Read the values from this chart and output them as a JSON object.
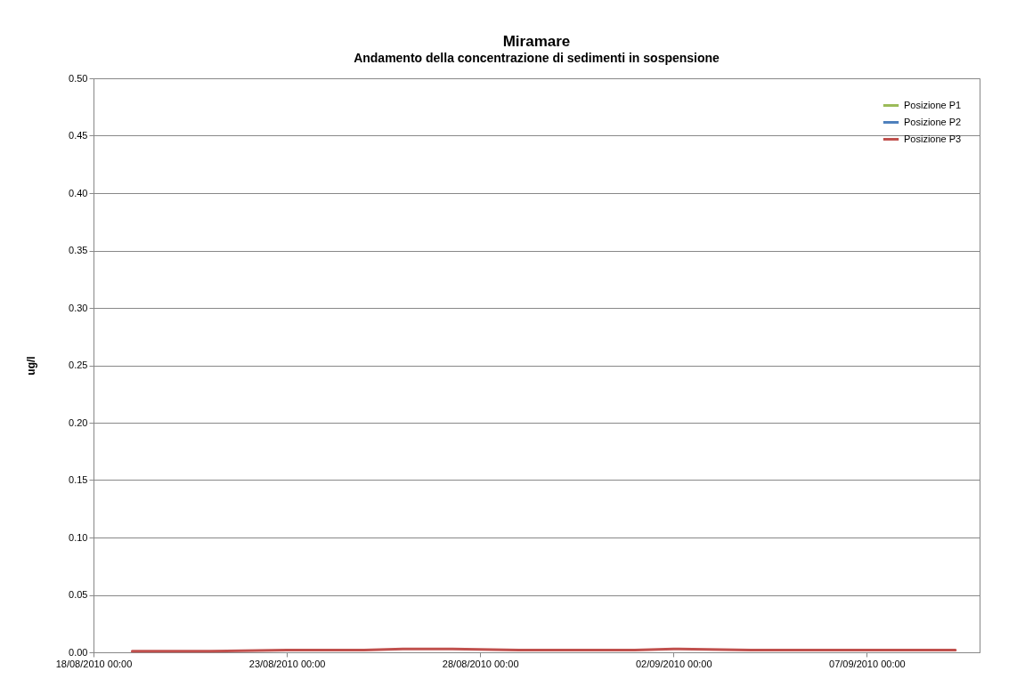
{
  "chart_data": {
    "type": "line",
    "title": "Miramare",
    "subtitle": "Andamento della concentrazione di sedimenti in sospensione",
    "ylabel": "ug/l",
    "x": [
      "2010-08-19",
      "2010-08-21",
      "2010-08-23",
      "2010-08-25",
      "2010-08-26",
      "2010-08-27",
      "2010-08-29",
      "2010-08-31",
      "2010-09-01",
      "2010-09-02",
      "2010-09-04",
      "2010-09-06",
      "2010-09-08",
      "2010-09-09T07:00"
    ],
    "series": [
      {
        "name": "Posizione P1",
        "color": "#9bbb59",
        "values": [
          null,
          null,
          null,
          null,
          null,
          null,
          null,
          null,
          null,
          null,
          null,
          null,
          null,
          null
        ]
      },
      {
        "name": "Posizione P2",
        "color": "#4f81bd",
        "values": [
          null,
          null,
          null,
          null,
          null,
          null,
          null,
          null,
          null,
          null,
          null,
          null,
          null,
          null
        ]
      },
      {
        "name": "Posizione P3",
        "color": "#c0504d",
        "values": [
          0.001,
          0.001,
          0.002,
          0.002,
          0.003,
          0.003,
          0.002,
          0.002,
          0.002,
          0.003,
          0.002,
          0.002,
          0.002,
          0.002
        ]
      }
    ],
    "xlim": [
      "2010-08-18",
      "2010-09-09T22:00"
    ],
    "xticks": [
      {
        "value": "2010-08-18",
        "label": "18/08/2010 00:00"
      },
      {
        "value": "2010-08-23",
        "label": "23/08/2010 00:00"
      },
      {
        "value": "2010-08-28",
        "label": "28/08/2010 00:00"
      },
      {
        "value": "2010-09-02",
        "label": "02/09/2010 00:00"
      },
      {
        "value": "2010-09-07",
        "label": "07/09/2010 00:00"
      }
    ],
    "ylim": [
      0,
      0.5
    ],
    "yticks": [
      {
        "value": 0,
        "label": "0.00"
      },
      {
        "value": 0.05,
        "label": "0.05"
      },
      {
        "value": 0.1,
        "label": "0.10"
      },
      {
        "value": 0.15,
        "label": "0.15"
      },
      {
        "value": 0.2,
        "label": "0.20"
      },
      {
        "value": 0.25,
        "label": "0.25"
      },
      {
        "value": 0.3,
        "label": "0.30"
      },
      {
        "value": 0.35,
        "label": "0.35"
      },
      {
        "value": 0.4,
        "label": "0.40"
      },
      {
        "value": 0.45,
        "label": "0.45"
      },
      {
        "value": 0.5,
        "label": "0.50"
      }
    ],
    "grid": "y",
    "legend": "top right",
    "line_style": "solid"
  }
}
